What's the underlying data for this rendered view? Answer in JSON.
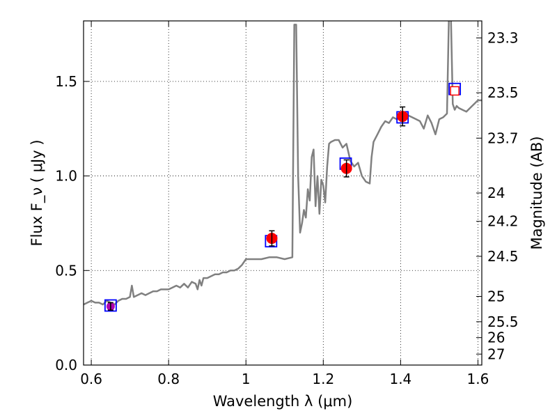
{
  "chart_data": {
    "type": "line",
    "title": "",
    "xlabel": "Wavelength  λ (μm)",
    "ylabel": "Flux  F_ν  ( μJy )",
    "y2label": "Magnitude (AB)",
    "xlim": [
      0.58,
      1.61
    ],
    "ylim": [
      0.0,
      1.82
    ],
    "grid": true,
    "x_ticks": [
      0.6,
      0.8,
      1.0,
      1.2,
      1.4,
      1.6
    ],
    "x_tick_labels": [
      "0.6",
      "0.8",
      "1",
      "1.2",
      "1.4",
      "1.6"
    ],
    "y_ticks": [
      0.0,
      0.5,
      1.0,
      1.5
    ],
    "y_tick_labels": [
      "0.0",
      "0.5",
      "1.0",
      "1.5"
    ],
    "y2_ticks": [
      {
        "label": "23.3",
        "flux": 1.73
      },
      {
        "label": "23.5",
        "flux": 1.44
      },
      {
        "label": "23.7",
        "flux": 1.2
      },
      {
        "label": "24",
        "flux": 0.91
      },
      {
        "label": "24.2",
        "flux": 0.76
      },
      {
        "label": "24.5",
        "flux": 0.575
      },
      {
        "label": "25",
        "flux": 0.363
      },
      {
        "label": "25.5",
        "flux": 0.229
      },
      {
        "label": "26",
        "flux": 0.145
      },
      {
        "label": "27",
        "flux": 0.058
      }
    ],
    "colors": {
      "model": "#808080",
      "observed": "#ff0000",
      "model_box": "#0000ff",
      "error_bar": "#000000",
      "upper_limit_box": "#ff0000"
    },
    "series": [
      {
        "kind": "model_spectrum",
        "x": [
          0.58,
          0.59,
          0.6,
          0.61,
          0.62,
          0.63,
          0.64,
          0.65,
          0.66,
          0.67,
          0.68,
          0.69,
          0.7,
          0.705,
          0.71,
          0.72,
          0.73,
          0.74,
          0.75,
          0.76,
          0.77,
          0.78,
          0.79,
          0.8,
          0.81,
          0.82,
          0.83,
          0.84,
          0.85,
          0.86,
          0.87,
          0.875,
          0.88,
          0.885,
          0.89,
          0.9,
          0.91,
          0.92,
          0.93,
          0.94,
          0.95,
          0.96,
          0.97,
          0.98,
          0.99,
          1.0,
          1.02,
          1.04,
          1.06,
          1.08,
          1.1,
          1.12,
          1.125,
          1.13,
          1.135,
          1.14,
          1.145,
          1.15,
          1.155,
          1.16,
          1.165,
          1.17,
          1.175,
          1.18,
          1.185,
          1.19,
          1.195,
          1.2,
          1.205,
          1.21,
          1.215,
          1.22,
          1.23,
          1.24,
          1.25,
          1.26,
          1.27,
          1.28,
          1.29,
          1.3,
          1.31,
          1.32,
          1.325,
          1.33,
          1.34,
          1.35,
          1.36,
          1.37,
          1.38,
          1.39,
          1.4,
          1.41,
          1.42,
          1.43,
          1.44,
          1.45,
          1.46,
          1.47,
          1.48,
          1.49,
          1.5,
          1.51,
          1.52,
          1.525,
          1.53,
          1.535,
          1.54,
          1.545,
          1.55,
          1.56,
          1.57,
          1.58,
          1.59,
          1.6,
          1.61
        ],
        "y": [
          0.32,
          0.33,
          0.34,
          0.33,
          0.33,
          0.32,
          0.34,
          0.33,
          0.32,
          0.34,
          0.35,
          0.35,
          0.36,
          0.42,
          0.36,
          0.37,
          0.38,
          0.37,
          0.38,
          0.39,
          0.39,
          0.4,
          0.4,
          0.4,
          0.41,
          0.42,
          0.41,
          0.43,
          0.41,
          0.44,
          0.43,
          0.4,
          0.45,
          0.42,
          0.46,
          0.46,
          0.47,
          0.48,
          0.48,
          0.49,
          0.49,
          0.5,
          0.5,
          0.51,
          0.53,
          0.56,
          0.56,
          0.56,
          0.57,
          0.57,
          0.56,
          0.57,
          1.8,
          1.8,
          1.0,
          0.7,
          0.75,
          0.82,
          0.78,
          0.93,
          0.87,
          1.1,
          1.14,
          0.84,
          1.0,
          0.8,
          0.98,
          0.95,
          0.86,
          1.05,
          1.17,
          1.18,
          1.19,
          1.19,
          1.15,
          1.17,
          1.08,
          1.05,
          1.07,
          1.0,
          0.97,
          0.96,
          1.1,
          1.18,
          1.22,
          1.26,
          1.29,
          1.28,
          1.31,
          1.3,
          1.31,
          1.32,
          1.32,
          1.31,
          1.3,
          1.29,
          1.25,
          1.32,
          1.28,
          1.22,
          1.3,
          1.31,
          1.33,
          1.85,
          1.85,
          1.38,
          1.35,
          1.37,
          1.36,
          1.35,
          1.34,
          1.36,
          1.38,
          1.4,
          1.4
        ]
      },
      {
        "kind": "model_photometry",
        "name": "",
        "x": [
          0.65,
          1.065,
          1.258,
          1.405,
          1.54
        ],
        "y": [
          0.315,
          0.655,
          1.065,
          1.31,
          1.46
        ]
      },
      {
        "kind": "observed_photometry",
        "name": "",
        "x": [
          0.65,
          1.067,
          1.26,
          1.405
        ],
        "y": [
          0.31,
          0.67,
          1.04,
          1.315
        ],
        "yerr": [
          0.02,
          0.04,
          0.045,
          0.05
        ]
      },
      {
        "kind": "upper_limit",
        "name": "",
        "x": [
          1.54
        ],
        "y": [
          1.45
        ]
      }
    ]
  }
}
